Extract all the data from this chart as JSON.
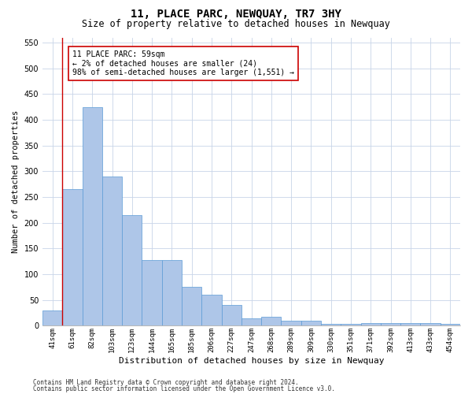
{
  "title": "11, PLACE PARC, NEWQUAY, TR7 3HY",
  "subtitle": "Size of property relative to detached houses in Newquay",
  "xlabel": "Distribution of detached houses by size in Newquay",
  "ylabel": "Number of detached properties",
  "categories": [
    "41sqm",
    "61sqm",
    "82sqm",
    "103sqm",
    "123sqm",
    "144sqm",
    "165sqm",
    "185sqm",
    "206sqm",
    "227sqm",
    "247sqm",
    "268sqm",
    "289sqm",
    "309sqm",
    "330sqm",
    "351sqm",
    "371sqm",
    "392sqm",
    "413sqm",
    "433sqm",
    "454sqm"
  ],
  "values": [
    30,
    265,
    425,
    290,
    215,
    128,
    128,
    75,
    60,
    40,
    15,
    17,
    10,
    10,
    4,
    4,
    5,
    5,
    5,
    5,
    4
  ],
  "bar_color": "#aec6e8",
  "bar_edge_color": "#5b9bd5",
  "highlight_line_color": "#cc0000",
  "annotation_line1": "11 PLACE PARC: 59sqm",
  "annotation_line2": "← 2% of detached houses are smaller (24)",
  "annotation_line3": "98% of semi-detached houses are larger (1,551) →",
  "annotation_box_color": "#ffffff",
  "annotation_box_edge": "#cc0000",
  "ylim": [
    0,
    560
  ],
  "yticks": [
    0,
    50,
    100,
    150,
    200,
    250,
    300,
    350,
    400,
    450,
    500,
    550
  ],
  "footer1": "Contains HM Land Registry data © Crown copyright and database right 2024.",
  "footer2": "Contains public sector information licensed under the Open Government Licence v3.0.",
  "background_color": "#ffffff",
  "grid_color": "#c8d4e8",
  "title_fontsize": 10,
  "subtitle_fontsize": 8.5,
  "xlabel_fontsize": 8,
  "ylabel_fontsize": 7.5,
  "tick_fontsize": 6.5,
  "footer_fontsize": 5.5,
  "annotation_fontsize": 7
}
